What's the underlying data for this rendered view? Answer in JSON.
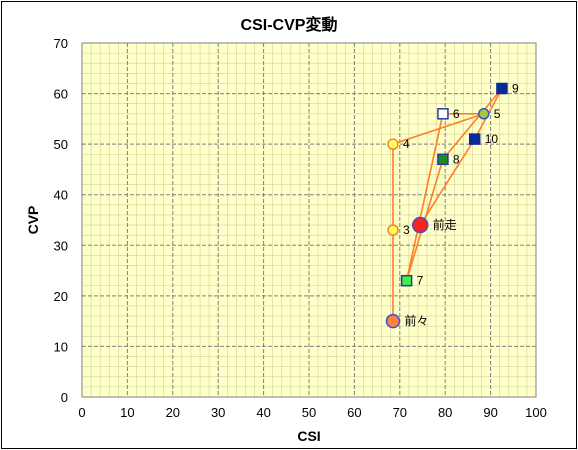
{
  "chart_data": {
    "type": "scatter",
    "title": "CSI-CVP変動",
    "xlabel": "CSI",
    "ylabel": "CVP",
    "xlim": [
      0,
      100
    ],
    "ylim": [
      0,
      70
    ],
    "x_major_step": 10,
    "y_major_step": 10,
    "x_minor_step": 2,
    "y_minor_step": 2,
    "grid": true,
    "legend": "none",
    "colors": {
      "plot_background": "#ffffc8",
      "major_grid": "#808080",
      "minor_grid": "#d0d0a0",
      "connecting_line": "#ff7f27"
    },
    "path_order": [
      "前々",
      "3",
      "4",
      "5",
      "6",
      "7",
      "8",
      "9",
      "10",
      "前走"
    ],
    "points": [
      {
        "label": "前々",
        "x": 68.5,
        "y": 15,
        "marker": "circle",
        "size": "large",
        "fill": "#ff8040",
        "stroke": "#3355cc"
      },
      {
        "label": "3",
        "x": 68.5,
        "y": 33,
        "marker": "circle",
        "size": "medium",
        "fill": "#ffff66",
        "stroke": "#ff7f27"
      },
      {
        "label": "4",
        "x": 68.5,
        "y": 50,
        "marker": "circle",
        "size": "medium",
        "fill": "#ffff66",
        "stroke": "#ff7f27"
      },
      {
        "label": "5",
        "x": 88.5,
        "y": 56,
        "marker": "circle",
        "size": "medium",
        "fill": "#a8c83c",
        "stroke": "#3355cc"
      },
      {
        "label": "6",
        "x": 79.5,
        "y": 56,
        "marker": "square",
        "size": "medium",
        "fill": "#ffffff",
        "stroke": "#1f3fa0"
      },
      {
        "label": "7",
        "x": 71.5,
        "y": 23,
        "marker": "square",
        "size": "medium",
        "fill": "#44ee44",
        "stroke": "#1f3fa0"
      },
      {
        "label": "8",
        "x": 79.5,
        "y": 47,
        "marker": "square",
        "size": "medium",
        "fill": "#228822",
        "stroke": "#1f3fa0"
      },
      {
        "label": "9",
        "x": 92.5,
        "y": 61,
        "marker": "square",
        "size": "medium",
        "fill": "#0a2a9a",
        "stroke": "#0a2a9a"
      },
      {
        "label": "10",
        "x": 86.5,
        "y": 51,
        "marker": "square",
        "size": "medium",
        "fill": "#0a2a9a",
        "stroke": "#0a2a9a"
      },
      {
        "label": "前走",
        "x": 74.5,
        "y": 34,
        "marker": "circle",
        "size": "xlarge",
        "fill": "#ff2020",
        "stroke": "#3355cc"
      }
    ]
  }
}
